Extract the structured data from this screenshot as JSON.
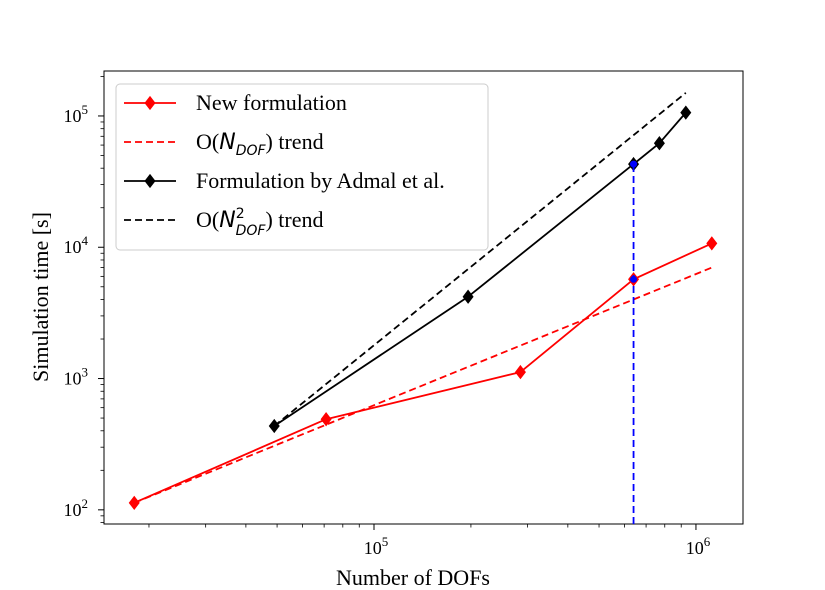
{
  "chart_data": {
    "type": "line",
    "xscale": "log",
    "yscale": "log",
    "xlim": [
      14500,
      1400000
    ],
    "ylim": [
      78,
      220000
    ],
    "xlabel": "Number of DOFs",
    "ylabel": "Simulation time [s]",
    "grid": false,
    "legend_position": "top-left",
    "x_ticks": [
      {
        "value": 100000,
        "base": "10",
        "exp": "5"
      },
      {
        "value": 1000000,
        "base": "10",
        "exp": "6"
      }
    ],
    "y_ticks": [
      {
        "value": 100,
        "base": "10",
        "exp": "2"
      },
      {
        "value": 1000,
        "base": "10",
        "exp": "3"
      },
      {
        "value": 10000,
        "base": "10",
        "exp": "4"
      },
      {
        "value": 100000,
        "base": "10",
        "exp": "5"
      }
    ],
    "series": [
      {
        "name": "New formulation",
        "legend": {
          "pre": "New formulation"
        },
        "color": "#ff0000",
        "dash": "solid",
        "marker": "diamond",
        "x": [
          18000,
          71000,
          285000,
          640000,
          1120000
        ],
        "y": [
          113,
          490,
          1120,
          5700,
          10700
        ]
      },
      {
        "name": "O(N_DOF) trend",
        "legend": {
          "pre": "O(",
          "sym": "N",
          "sub": "DOF",
          "sup": "",
          "post": ") trend"
        },
        "color": "#ff0000",
        "dash": "dashed",
        "marker": "none",
        "x": [
          18000,
          1120000
        ],
        "y": [
          113,
          7000
        ]
      },
      {
        "name": "Formulation by Admal et al.",
        "legend": {
          "pre": "Formulation by Admal et al."
        },
        "color": "#000000",
        "dash": "solid",
        "marker": "diamond",
        "x": [
          49000,
          196000,
          640000,
          770000,
          930000
        ],
        "y": [
          435,
          4200,
          43000,
          62000,
          106000
        ]
      },
      {
        "name": "O(N_DOF^2) trend",
        "legend": {
          "pre": "O(",
          "sym": "N",
          "sub": "DOF",
          "sup": "2",
          "post": ") trend"
        },
        "color": "#000000",
        "dash": "dashed",
        "marker": "none",
        "x": [
          49000,
          930000
        ],
        "y": [
          435,
          150000
        ]
      }
    ],
    "annotations": [
      {
        "type": "vertical-dashed-line",
        "color": "#0000ff",
        "x": 640000,
        "y_from": 78,
        "y_to": 43000,
        "markers": [
          {
            "x": 640000,
            "y": 43000
          },
          {
            "x": 640000,
            "y": 5700
          }
        ]
      }
    ]
  }
}
